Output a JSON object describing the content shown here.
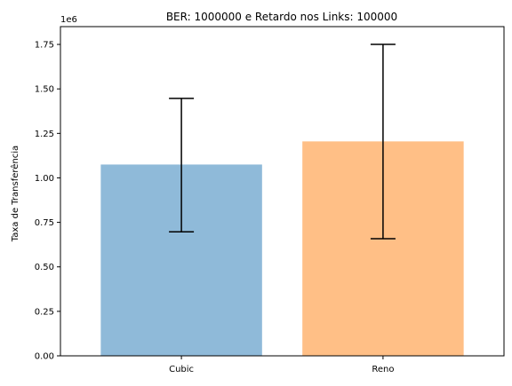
{
  "chart_data": {
    "type": "bar",
    "title": "BER: 1000000 e Retardo nos Links: 100000",
    "xlabel": "",
    "ylabel": "Taxa de Transferência",
    "y_offset_label": "1e6",
    "ylim": [
      0,
      1850000
    ],
    "yticks": [
      0,
      250000,
      500000,
      750000,
      1000000,
      1250000,
      1500000,
      1750000
    ],
    "ytick_labels": [
      "0.00",
      "0.25",
      "0.50",
      "0.75",
      "1.00",
      "1.25",
      "1.50",
      "1.75"
    ],
    "categories": [
      "Cubic",
      "Reno"
    ],
    "values": [
      1075000,
      1205000
    ],
    "error_low": [
      697000,
      658000
    ],
    "error_high": [
      1447000,
      1750000
    ],
    "colors": [
      "#8fbad9",
      "#ffbf86"
    ],
    "grid": false
  }
}
